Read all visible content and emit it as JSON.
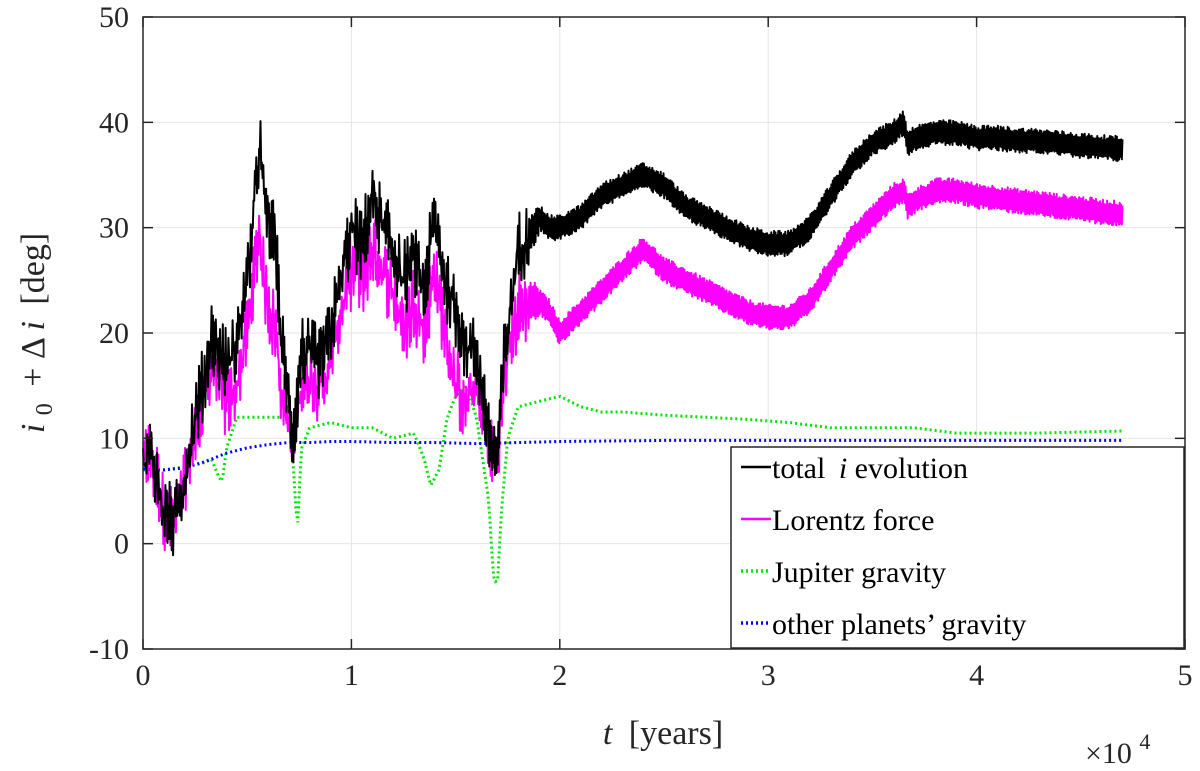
{
  "chart_data": {
    "type": "line",
    "title": "",
    "xlabel": {
      "var": "t",
      "unit": "[years]"
    },
    "ylabel": {
      "var": "i",
      "sub": "0",
      "rest": "+ Δ",
      "var2": "i",
      "unit": "[deg]"
    },
    "x_multiplier": {
      "base": "×10",
      "exp": "4"
    },
    "xlim": [
      0,
      5
    ],
    "ylim": [
      -10,
      50
    ],
    "x_ticks": [
      0,
      1,
      2,
      3,
      4,
      5
    ],
    "x_tick_labels": [
      "0",
      "1",
      "2",
      "3",
      "4",
      "5"
    ],
    "y_ticks": [
      -10,
      0,
      10,
      20,
      30,
      40,
      50
    ],
    "y_tick_labels": [
      "-10",
      "0",
      "10",
      "20",
      "30",
      "40",
      "50"
    ],
    "grid": true,
    "legend_position": "lower-right",
    "series": [
      {
        "name": "total i evolution",
        "legend": {
          "pre": "total ",
          "var": "i",
          "post": " evolution"
        },
        "color": "#000000",
        "style": "solid",
        "band_width": [
          1.8,
          1.2
        ],
        "x": [
          0,
          0.03,
          0.07,
          0.1,
          0.14,
          0.18,
          0.22,
          0.26,
          0.3,
          0.33,
          0.36,
          0.4,
          0.45,
          0.5,
          0.53,
          0.56,
          0.58,
          0.61,
          0.64,
          0.66,
          0.69,
          0.72,
          0.74,
          0.76,
          0.8,
          0.85,
          0.9,
          0.95,
          1.0,
          1.05,
          1.1,
          1.15,
          1.2,
          1.25,
          1.3,
          1.35,
          1.4,
          1.45,
          1.5,
          1.55,
          1.6,
          1.63,
          1.66,
          1.7,
          1.73,
          1.76,
          1.8,
          1.85,
          1.9,
          1.95,
          2.0,
          2.1,
          2.2,
          2.3,
          2.4,
          2.5,
          2.6,
          2.7,
          2.8,
          2.9,
          3.0,
          3.1,
          3.2,
          3.3,
          3.4,
          3.5,
          3.6,
          3.65,
          3.67,
          3.7,
          3.8,
          3.9,
          4.0,
          4.1,
          4.2,
          4.3,
          4.4,
          4.5,
          4.6,
          4.7
        ],
        "values": [
          7,
          9,
          6,
          3,
          2,
          4,
          9,
          13,
          16,
          20,
          18,
          17,
          19,
          25,
          31,
          38,
          33,
          30,
          28,
          20,
          15,
          10,
          14,
          18,
          18,
          17,
          20,
          25,
          30,
          28,
          33,
          30,
          28,
          25,
          27,
          24,
          31,
          25,
          22,
          19,
          18,
          14,
          10,
          8,
          17,
          22,
          28,
          29,
          31,
          30,
          30,
          31,
          33,
          34,
          35,
          34,
          32,
          31,
          30,
          29,
          28.5,
          28.5,
          30,
          33,
          36,
          38,
          39,
          40,
          38,
          38.5,
          39,
          39,
          38.5,
          38.5,
          38.3,
          38.2,
          38,
          37.8,
          37.6,
          37.5
        ]
      },
      {
        "name": "Lorentz force",
        "legend": {
          "pre": "Lorentz force",
          "var": "",
          "post": ""
        },
        "color": "#ff00ff",
        "style": "solid",
        "band_width": [
          1.8,
          1.2
        ],
        "x": [
          0,
          0.03,
          0.07,
          0.1,
          0.14,
          0.18,
          0.22,
          0.26,
          0.3,
          0.33,
          0.36,
          0.4,
          0.45,
          0.5,
          0.53,
          0.56,
          0.58,
          0.61,
          0.64,
          0.66,
          0.69,
          0.72,
          0.74,
          0.76,
          0.8,
          0.85,
          0.9,
          0.95,
          1.0,
          1.05,
          1.1,
          1.15,
          1.2,
          1.25,
          1.3,
          1.35,
          1.4,
          1.45,
          1.5,
          1.55,
          1.6,
          1.63,
          1.66,
          1.7,
          1.73,
          1.76,
          1.8,
          1.85,
          1.9,
          1.95,
          2.0,
          2.1,
          2.2,
          2.3,
          2.4,
          2.5,
          2.6,
          2.7,
          2.8,
          2.9,
          3.0,
          3.1,
          3.2,
          3.3,
          3.4,
          3.5,
          3.6,
          3.65,
          3.67,
          3.7,
          3.8,
          3.9,
          4.0,
          4.1,
          4.2,
          4.3,
          4.4,
          4.5,
          4.6,
          4.7
        ],
        "values": [
          7,
          9,
          6,
          3,
          2,
          4,
          8,
          11,
          14,
          17,
          16,
          13,
          15,
          20,
          25,
          30,
          25,
          22,
          20,
          15,
          12,
          9,
          12,
          15,
          16,
          15,
          17,
          22,
          26,
          25,
          28,
          26,
          24,
          20,
          23,
          20,
          26,
          20,
          15,
          13,
          15,
          12,
          9,
          8,
          15,
          19,
          22,
          23,
          23,
          22,
          20,
          22,
          24,
          26,
          28,
          26,
          25,
          24,
          23,
          22,
          21.5,
          21.5,
          23,
          26,
          29,
          31,
          33,
          33.5,
          32,
          32.5,
          33.5,
          33.5,
          33,
          32.8,
          32.5,
          32.3,
          32,
          31.8,
          31.5,
          31.3
        ]
      },
      {
        "name": "Jupiter gravity",
        "legend": {
          "pre": "Jupiter gravity",
          "var": "",
          "post": ""
        },
        "color": "#00e600",
        "style": "dotted",
        "band_width": [
          0,
          0
        ],
        "x": [
          0,
          0.1,
          0.2,
          0.28,
          0.33,
          0.36,
          0.38,
          0.4,
          0.45,
          0.5,
          0.6,
          0.7,
          0.72,
          0.74,
          0.76,
          0.8,
          0.9,
          1.0,
          1.1,
          1.2,
          1.3,
          1.35,
          1.38,
          1.42,
          1.46,
          1.5,
          1.55,
          1.6,
          1.63,
          1.66,
          1.68,
          1.7,
          1.72,
          1.75,
          1.8,
          1.9,
          2.0,
          2.1,
          2.2,
          2.3,
          2.5,
          2.7,
          2.9,
          3.1,
          3.3,
          3.5,
          3.7,
          3.9,
          4.1,
          4.3,
          4.5,
          4.7
        ],
        "values": [
          7,
          7,
          7.3,
          7.6,
          8,
          6.5,
          5.8,
          9,
          12,
          12,
          12,
          12,
          8,
          1,
          9,
          11,
          11.5,
          11,
          11,
          10,
          10.5,
          8,
          5.5,
          7,
          12,
          14,
          15,
          12,
          8,
          4,
          -3,
          -4,
          3,
          10,
          13,
          13.5,
          14,
          13,
          12.5,
          12.5,
          12.2,
          12,
          11.8,
          11.5,
          11,
          11,
          11,
          10.5,
          10.5,
          10.5,
          10.6,
          10.7
        ]
      },
      {
        "name": "other planets' gravity",
        "legend": {
          "pre": "other planets’ gravity",
          "var": "",
          "post": ""
        },
        "color": "#0000ff",
        "style": "dotted",
        "band_width": [
          0,
          0
        ],
        "x": [
          0,
          0.1,
          0.2,
          0.3,
          0.4,
          0.5,
          0.6,
          0.7,
          0.8,
          0.9,
          1.0,
          1.2,
          1.4,
          1.6,
          1.8,
          2.0,
          2.5,
          3.0,
          3.5,
          4.0,
          4.5,
          4.7
        ],
        "values": [
          7.1,
          7,
          7.2,
          7.8,
          8.6,
          9.1,
          9.4,
          9.6,
          9.6,
          9.7,
          9.7,
          9.6,
          9.6,
          9.5,
          9.6,
          9.7,
          9.8,
          9.8,
          9.8,
          9.8,
          9.8,
          9.8
        ]
      }
    ]
  }
}
